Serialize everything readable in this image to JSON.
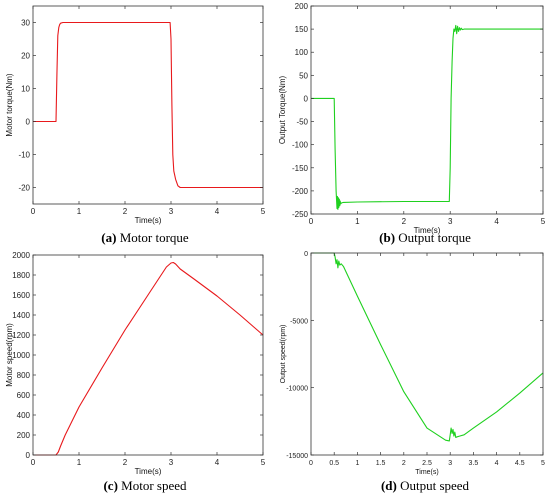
{
  "captions": [
    {
      "tag": "(a)",
      "text": "Motor torque"
    },
    {
      "tag": "(b)",
      "text": "Output torque"
    },
    {
      "tag": "(c)",
      "text": "Motor speed"
    },
    {
      "tag": "(d)",
      "text": "Output speed"
    }
  ],
  "chart_data": [
    {
      "type": "line",
      "title": "",
      "xlabel": "Time(s)",
      "ylabel": "Motor torque(Nm)",
      "xlim": [
        0,
        5
      ],
      "ylim": [
        -25,
        35
      ],
      "xticks": [
        0,
        1,
        2,
        3,
        4,
        5
      ],
      "xtick_labels": [
        "0",
        "1",
        "2",
        "3",
        "4",
        "5"
      ],
      "yticks": [
        -20,
        -10,
        0,
        10,
        20,
        30
      ],
      "ytick_labels": [
        "-20",
        "-10",
        "0",
        "10",
        "20",
        "30"
      ],
      "grid": false,
      "color": "#e8191c",
      "series": [
        {
          "x": [
            0,
            0.5,
            0.52,
            0.54,
            0.56,
            0.58,
            0.6,
            0.65,
            0.7,
            1.0,
            2.0,
            2.98,
            3.0,
            3.02,
            3.04,
            3.06,
            3.1,
            3.15,
            3.2,
            3.3,
            3.5,
            4.0,
            5.0
          ],
          "y": [
            0,
            0,
            14,
            26,
            28.5,
            29.4,
            29.8,
            30,
            30,
            30,
            30,
            30,
            25,
            5,
            -10,
            -15,
            -17.5,
            -19.5,
            -20,
            -20,
            -20,
            -20,
            -20
          ]
        }
      ]
    },
    {
      "type": "line",
      "title": "",
      "xlabel": "Time(s)",
      "ylabel": "Output Torque(Nm)",
      "xlim": [
        0,
        5
      ],
      "ylim": [
        -250,
        200
      ],
      "xticks": [
        0,
        1,
        2,
        3,
        4,
        5
      ],
      "xtick_labels": [
        "0",
        "1",
        "2",
        "3",
        "4",
        "5"
      ],
      "yticks": [
        -250,
        -200,
        -150,
        -100,
        -50,
        0,
        50,
        100,
        150,
        200
      ],
      "ytick_labels": [
        "-250",
        "-200",
        "-150",
        "-100",
        "-50",
        "0",
        "50",
        "100",
        "150",
        "200"
      ],
      "grid": false,
      "color": "#1fd01f",
      "series": [
        {
          "x": [
            0,
            0.5,
            0.52,
            0.54,
            0.56,
            0.57,
            0.58,
            0.59,
            0.6,
            0.61,
            0.62,
            0.63,
            0.64,
            0.66,
            0.7,
            1.0,
            2.0,
            2.98,
            3.0,
            3.02,
            3.04,
            3.06,
            3.08,
            3.1,
            3.12,
            3.14,
            3.16,
            3.18,
            3.2,
            3.22,
            3.24,
            3.26,
            3.3,
            3.5,
            4.0,
            5.0
          ],
          "y": [
            0,
            0,
            -110,
            -200,
            -238,
            -212,
            -240,
            -215,
            -236,
            -218,
            -232,
            -222,
            -228,
            -226,
            -225,
            -224,
            -223,
            -223,
            -150,
            0,
            80,
            130,
            150,
            145,
            158,
            140,
            156,
            145,
            153,
            148,
            152,
            149,
            150,
            150,
            150,
            150
          ]
        }
      ]
    },
    {
      "type": "line",
      "title": "",
      "xlabel": "Time(s)",
      "ylabel": "Motor speed(rpm)",
      "xlim": [
        0,
        5
      ],
      "ylim": [
        0,
        2000
      ],
      "xticks": [
        0,
        1,
        2,
        3,
        4,
        5
      ],
      "xtick_labels": [
        "0",
        "1",
        "2",
        "3",
        "4",
        "5"
      ],
      "yticks": [
        0,
        200,
        400,
        600,
        800,
        1000,
        1200,
        1400,
        1600,
        1800,
        2000
      ],
      "ytick_labels": [
        "0",
        "200",
        "400",
        "600",
        "800",
        "1000",
        "1200",
        "1400",
        "1600",
        "1800",
        "2000"
      ],
      "grid": false,
      "color": "#e8191c",
      "series": [
        {
          "x": [
            0,
            0.5,
            0.55,
            0.6,
            0.7,
            1.0,
            1.5,
            2.0,
            2.5,
            2.9,
            3.0,
            3.05,
            3.1,
            3.2,
            3.5,
            4.0,
            4.5,
            5.0
          ],
          "y": [
            0,
            0,
            30,
            90,
            200,
            480,
            870,
            1250,
            1600,
            1880,
            1920,
            1925,
            1910,
            1860,
            1760,
            1590,
            1400,
            1200
          ]
        }
      ]
    },
    {
      "type": "line",
      "title": "",
      "xlabel": "Time(s)",
      "ylabel": "Output speed(rpm)",
      "xlim": [
        0,
        5
      ],
      "ylim": [
        -15000,
        0
      ],
      "xticks": [
        0,
        0.5,
        1,
        1.5,
        2,
        2.5,
        3,
        3.5,
        4,
        4.5,
        5
      ],
      "xtick_labels": [
        "0",
        "0.5",
        "1",
        "1.5",
        "2",
        "2.5",
        "3",
        "3.5",
        "4",
        "4.5",
        "5"
      ],
      "yticks": [
        -15000,
        -10000,
        -5000,
        0
      ],
      "ytick_labels": [
        "-15000",
        "-10000",
        "-5000",
        "0"
      ],
      "grid": false,
      "color": "#1fd01f",
      "series": [
        {
          "x": [
            0,
            0.5,
            0.52,
            0.54,
            0.56,
            0.58,
            0.6,
            0.62,
            0.65,
            0.7,
            1.0,
            1.5,
            2.0,
            2.5,
            2.9,
            2.98,
            3.0,
            3.02,
            3.04,
            3.06,
            3.08,
            3.1,
            3.12,
            3.15,
            3.2,
            3.3,
            3.5,
            4.0,
            4.5,
            5.0
          ],
          "y": [
            0,
            0,
            -300,
            -800,
            -500,
            -1100,
            -600,
            -900,
            -800,
            -1000,
            -3200,
            -6800,
            -10300,
            -13000,
            -13900,
            -13950,
            -13500,
            -13000,
            -13400,
            -13100,
            -13600,
            -13300,
            -13700,
            -13650,
            -13600,
            -13500,
            -13000,
            -11800,
            -10400,
            -8900
          ]
        }
      ]
    }
  ]
}
